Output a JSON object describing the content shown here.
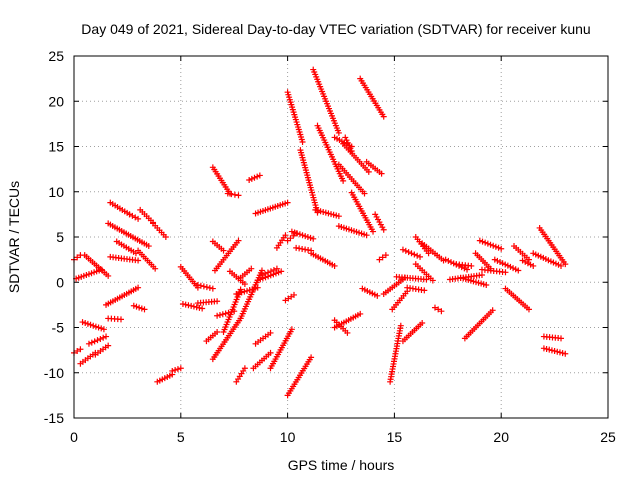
{
  "chart_data": {
    "type": "scatter",
    "title": "Day 049 of 2021, Sidereal Day-to-day VTEC variation (SDTVAR) for receiver kunu",
    "xlabel": "GPS time / hours",
    "ylabel": "SDTVAR / TECUs",
    "xlim": [
      0,
      25
    ],
    "ylim": [
      -15,
      25
    ],
    "xticks": [
      0,
      5,
      10,
      15,
      20,
      25
    ],
    "yticks": [
      -15,
      -10,
      -5,
      0,
      5,
      10,
      15,
      20,
      25
    ],
    "grid": true,
    "marker": "+",
    "color": "#ff0000",
    "segments": [
      {
        "x": [
          0.0,
          0.3
        ],
        "y": [
          2.5,
          3.0
        ]
      },
      {
        "x": [
          0.0,
          0.3
        ],
        "y": [
          -7.8,
          -7.4
        ]
      },
      {
        "x": [
          0.1,
          1.3
        ],
        "y": [
          0.4,
          1.4
        ]
      },
      {
        "x": [
          0.3,
          1.0
        ],
        "y": [
          -9.0,
          -7.8
        ]
      },
      {
        "x": [
          0.5,
          1.6
        ],
        "y": [
          3.0,
          0.7
        ]
      },
      {
        "x": [
          0.4,
          1.4
        ],
        "y": [
          -4.4,
          -5.2
        ]
      },
      {
        "x": [
          0.7,
          1.5
        ],
        "y": [
          -6.8,
          -6.0
        ]
      },
      {
        "x": [
          1.0,
          1.6
        ],
        "y": [
          -8.0,
          -7.0
        ]
      },
      {
        "x": [
          1.5,
          3.0
        ],
        "y": [
          -2.5,
          -0.6
        ]
      },
      {
        "x": [
          1.6,
          2.2
        ],
        "y": [
          -4.0,
          -4.1
        ]
      },
      {
        "x": [
          1.7,
          2.6
        ],
        "y": [
          8.8,
          7.5
        ]
      },
      {
        "x": [
          1.6,
          3.5
        ],
        "y": [
          6.5,
          4.0
        ]
      },
      {
        "x": [
          2.0,
          2.9
        ],
        "y": [
          4.5,
          3.2
        ]
      },
      {
        "x": [
          1.7,
          3.0
        ],
        "y": [
          2.8,
          2.4
        ]
      },
      {
        "x": [
          2.6,
          3.0
        ],
        "y": [
          7.5,
          7.0
        ]
      },
      {
        "x": [
          2.8,
          3.3
        ],
        "y": [
          -2.6,
          -3.0
        ]
      },
      {
        "x": [
          3.0,
          3.8
        ],
        "y": [
          3.5,
          1.5
        ]
      },
      {
        "x": [
          3.1,
          3.7
        ],
        "y": [
          8.0,
          6.6
        ]
      },
      {
        "x": [
          3.7,
          4.3
        ],
        "y": [
          6.5,
          5.0
        ]
      },
      {
        "x": [
          3.9,
          4.6
        ],
        "y": [
          -11.0,
          -10.2
        ]
      },
      {
        "x": [
          4.6,
          5.0
        ],
        "y": [
          -9.8,
          -9.5
        ]
      },
      {
        "x": [
          5.0,
          5.8
        ],
        "y": [
          1.7,
          -0.6
        ]
      },
      {
        "x": [
          5.1,
          6.0
        ],
        "y": [
          -2.4,
          -2.9
        ]
      },
      {
        "x": [
          5.8,
          6.5
        ],
        "y": [
          -0.3,
          -0.7
        ]
      },
      {
        "x": [
          5.8,
          6.7
        ],
        "y": [
          -2.3,
          -2.1
        ]
      },
      {
        "x": [
          6.2,
          6.7
        ],
        "y": [
          -6.5,
          -5.5
        ]
      },
      {
        "x": [
          6.5,
          7.3
        ],
        "y": [
          12.7,
          9.8
        ]
      },
      {
        "x": [
          6.5,
          7.0
        ],
        "y": [
          4.5,
          3.5
        ]
      },
      {
        "x": [
          6.5,
          7.8
        ],
        "y": [
          -8.5,
          -4.0
        ]
      },
      {
        "x": [
          6.6,
          7.7
        ],
        "y": [
          1.3,
          4.6
        ]
      },
      {
        "x": [
          7.2,
          7.7
        ],
        "y": [
          9.8,
          9.6
        ]
      },
      {
        "x": [
          6.7,
          7.5
        ],
        "y": [
          -3.7,
          -3.2
        ]
      },
      {
        "x": [
          7.3,
          8.0
        ],
        "y": [
          1.2,
          -0.2
        ]
      },
      {
        "x": [
          7.0,
          7.8
        ],
        "y": [
          -5.5,
          -0.8
        ]
      },
      {
        "x": [
          7.6,
          8.0
        ],
        "y": [
          -11.0,
          -9.5
        ]
      },
      {
        "x": [
          7.6,
          8.6
        ],
        "y": [
          -1.3,
          -0.6
        ]
      },
      {
        "x": [
          7.8,
          8.8
        ],
        "y": [
          -4.0,
          1.3
        ]
      },
      {
        "x": [
          7.8,
          8.3
        ],
        "y": [
          0.5,
          1.5
        ]
      },
      {
        "x": [
          8.2,
          8.7
        ],
        "y": [
          11.3,
          11.8
        ]
      },
      {
        "x": [
          8.6,
          9.7
        ],
        "y": [
          0.2,
          1.2
        ]
      },
      {
        "x": [
          8.4,
          9.2
        ],
        "y": [
          -9.5,
          -7.8
        ]
      },
      {
        "x": [
          8.5,
          9.2
        ],
        "y": [
          -6.8,
          -5.6
        ]
      },
      {
        "x": [
          8.5,
          10.0
        ],
        "y": [
          7.6,
          8.8
        ]
      },
      {
        "x": [
          8.8,
          9.5
        ],
        "y": [
          0.8,
          1.5
        ]
      },
      {
        "x": [
          9.2,
          10.2
        ],
        "y": [
          -9.5,
          -5.2
        ]
      },
      {
        "x": [
          9.5,
          9.9
        ],
        "y": [
          3.8,
          5.2
        ]
      },
      {
        "x": [
          9.9,
          10.3
        ],
        "y": [
          -2.0,
          -1.4
        ]
      },
      {
        "x": [
          10.0,
          10.7
        ],
        "y": [
          21.0,
          15.5
        ]
      },
      {
        "x": [
          10.0,
          11.1
        ],
        "y": [
          -12.5,
          -8.3
        ]
      },
      {
        "x": [
          10.0,
          10.4
        ],
        "y": [
          4.6,
          5.4
        ]
      },
      {
        "x": [
          10.2,
          11.2
        ],
        "y": [
          5.6,
          4.8
        ]
      },
      {
        "x": [
          10.4,
          11.1
        ],
        "y": [
          3.8,
          3.5
        ]
      },
      {
        "x": [
          10.6,
          11.4
        ],
        "y": [
          14.6,
          7.7
        ]
      },
      {
        "x": [
          11.1,
          12.2
        ],
        "y": [
          3.2,
          1.8
        ]
      },
      {
        "x": [
          11.3,
          12.4
        ],
        "y": [
          8.0,
          7.3
        ]
      },
      {
        "x": [
          11.2,
          12.4
        ],
        "y": [
          23.5,
          16.5
        ]
      },
      {
        "x": [
          11.4,
          12.6
        ],
        "y": [
          17.3,
          11.2
        ]
      },
      {
        "x": [
          12.2,
          13.0
        ],
        "y": [
          16.0,
          15.0
        ]
      },
      {
        "x": [
          12.2,
          12.8
        ],
        "y": [
          -4.2,
          -5.6
        ]
      },
      {
        "x": [
          12.2,
          13.4
        ],
        "y": [
          -5.0,
          -3.5
        ]
      },
      {
        "x": [
          12.4,
          13.6
        ],
        "y": [
          13.0,
          9.8
        ]
      },
      {
        "x": [
          12.6,
          13.8
        ],
        "y": [
          15.3,
          12.2
        ]
      },
      {
        "x": [
          12.4,
          13.7
        ],
        "y": [
          6.2,
          5.2
        ]
      },
      {
        "x": [
          12.7,
          13.0
        ],
        "y": [
          16.0,
          14.5
        ]
      },
      {
        "x": [
          13.0,
          14.0
        ],
        "y": [
          9.9,
          5.6
        ]
      },
      {
        "x": [
          13.4,
          14.5
        ],
        "y": [
          22.5,
          18.3
        ]
      },
      {
        "x": [
          13.5,
          14.2
        ],
        "y": [
          -0.7,
          -1.5
        ]
      },
      {
        "x": [
          13.7,
          14.4
        ],
        "y": [
          13.3,
          12.0
        ]
      },
      {
        "x": [
          14.1,
          14.5
        ],
        "y": [
          7.5,
          5.8
        ]
      },
      {
        "x": [
          14.3,
          14.6
        ],
        "y": [
          2.5,
          3.0
        ]
      },
      {
        "x": [
          14.5,
          15.5
        ],
        "y": [
          -1.3,
          0.5
        ]
      },
      {
        "x": [
          14.8,
          15.3
        ],
        "y": [
          -11.0,
          -4.8
        ]
      },
      {
        "x": [
          14.9,
          15.6
        ],
        "y": [
          -3.0,
          -1.0
        ]
      },
      {
        "x": [
          15.1,
          16.5
        ],
        "y": [
          0.6,
          0.3
        ]
      },
      {
        "x": [
          15.4,
          16.3
        ],
        "y": [
          -6.5,
          -4.5
        ]
      },
      {
        "x": [
          15.6,
          16.4
        ],
        "y": [
          -0.6,
          -0.9
        ]
      },
      {
        "x": [
          15.4,
          16.2
        ],
        "y": [
          3.6,
          2.8
        ]
      },
      {
        "x": [
          16.0,
          16.6
        ],
        "y": [
          5.0,
          3.2
        ]
      },
      {
        "x": [
          16.0,
          16.8
        ],
        "y": [
          2.0,
          0.2
        ]
      },
      {
        "x": [
          16.3,
          17.3
        ],
        "y": [
          4.3,
          2.4
        ]
      },
      {
        "x": [
          16.9,
          17.2
        ],
        "y": [
          -2.8,
          -3.2
        ]
      },
      {
        "x": [
          17.4,
          18.4
        ],
        "y": [
          2.5,
          1.4
        ]
      },
      {
        "x": [
          17.6,
          19.1
        ],
        "y": [
          0.3,
          0.8
        ]
      },
      {
        "x": [
          17.9,
          18.6
        ],
        "y": [
          2.0,
          1.8
        ]
      },
      {
        "x": [
          18.1,
          19.3
        ],
        "y": [
          0.5,
          -0.3
        ]
      },
      {
        "x": [
          18.3,
          19.6
        ],
        "y": [
          -6.2,
          -3.1
        ]
      },
      {
        "x": [
          18.8,
          19.5
        ],
        "y": [
          3.2,
          1.5
        ]
      },
      {
        "x": [
          19.0,
          20.0
        ],
        "y": [
          4.6,
          3.7
        ]
      },
      {
        "x": [
          19.1,
          20.2
        ],
        "y": [
          1.4,
          1.1
        ]
      },
      {
        "x": [
          19.7,
          20.8
        ],
        "y": [
          2.5,
          1.3
        ]
      },
      {
        "x": [
          20.2,
          21.3
        ],
        "y": [
          -0.7,
          -3.0
        ]
      },
      {
        "x": [
          20.6,
          21.3
        ],
        "y": [
          4.0,
          2.5
        ]
      },
      {
        "x": [
          21.0,
          21.5
        ],
        "y": [
          2.4,
          1.8
        ]
      },
      {
        "x": [
          21.5,
          22.8
        ],
        "y": [
          3.2,
          1.8
        ]
      },
      {
        "x": [
          21.8,
          23.0
        ],
        "y": [
          6.0,
          2.0
        ]
      },
      {
        "x": [
          22.0,
          22.8
        ],
        "y": [
          -6.0,
          -6.2
        ]
      },
      {
        "x": [
          22.0,
          23.0
        ],
        "y": [
          -7.3,
          -7.9
        ]
      }
    ]
  }
}
